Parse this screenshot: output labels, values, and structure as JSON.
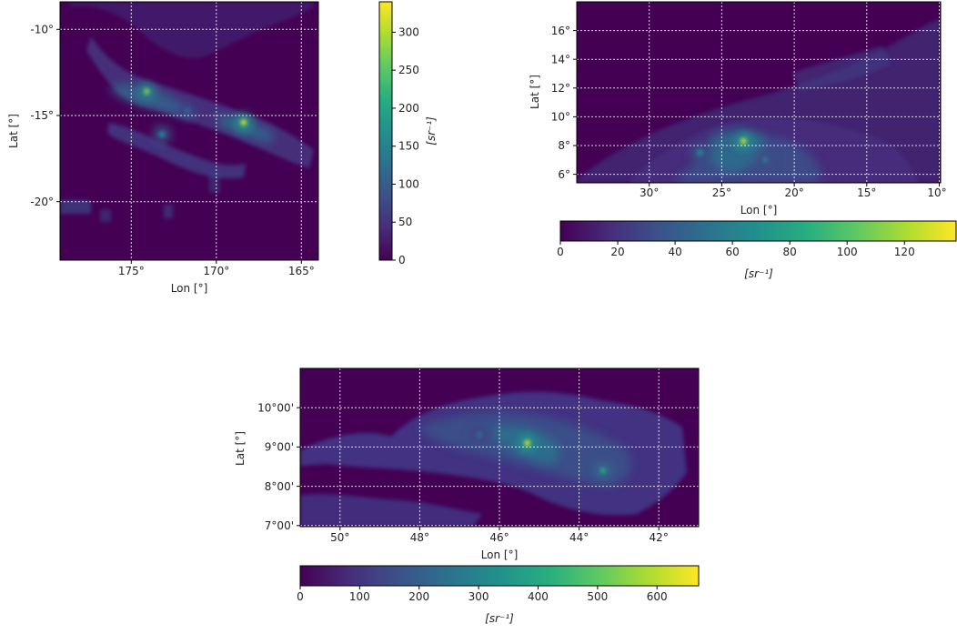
{
  "chart_data": [
    {
      "type": "heatmap",
      "xlabel": "Lon [°]",
      "ylabel": "Lat [°]",
      "x_ticks": [
        "175°",
        "170°",
        "165°"
      ],
      "x_tick_values": [
        175,
        170,
        165
      ],
      "y_ticks": [
        "-10°",
        "-15°",
        "-20°"
      ],
      "y_tick_values": [
        -10,
        -15,
        -20
      ],
      "xlim": [
        179.5,
        164.3
      ],
      "ylim": [
        -23.5,
        -8.5
      ],
      "grid": true,
      "colorbar": {
        "orientation": "vertical",
        "position": "right",
        "label": "[sr⁻¹]",
        "ticks": [
          "0",
          "50",
          "100",
          "150",
          "200",
          "250",
          "300"
        ],
        "tick_values": [
          0,
          50,
          100,
          150,
          200,
          250,
          300
        ],
        "range": [
          0,
          340
        ]
      },
      "colormap": "viridis",
      "hotspots": [
        {
          "lon": 174.4,
          "lat": -13.7,
          "value": 280
        },
        {
          "lon": 173.5,
          "lat": -16.2,
          "value": 170
        },
        {
          "lon": 168.7,
          "lat": -15.5,
          "value": 330
        },
        {
          "lon": 172.0,
          "lat": -14.8,
          "value": 120
        }
      ]
    },
    {
      "type": "heatmap",
      "xlabel": "Lon [°]",
      "ylabel": "Lat [°]",
      "x_ticks": [
        "30°",
        "25°",
        "20°",
        "15°",
        "10°"
      ],
      "x_tick_values": [
        30,
        25,
        20,
        15,
        10
      ],
      "y_ticks": [
        "16°",
        "14°",
        "12°",
        "10°",
        "8°",
        "6°"
      ],
      "y_tick_values": [
        16,
        14,
        12,
        10,
        8,
        6
      ],
      "xlim": [
        35.0,
        9.9
      ],
      "ylim": [
        5.4,
        18.0
      ],
      "grid": true,
      "colorbar": {
        "orientation": "horizontal",
        "position": "bottom",
        "label": "[sr⁻¹]",
        "ticks": [
          "0",
          "20",
          "40",
          "60",
          "80",
          "100",
          "120"
        ],
        "tick_values": [
          0,
          20,
          40,
          60,
          80,
          100,
          120
        ],
        "range": [
          0,
          138
        ]
      },
      "colormap": "viridis",
      "hotspots": [
        {
          "lon": 23.5,
          "lat": 8.3,
          "value": 130
        },
        {
          "lon": 26.5,
          "lat": 7.5,
          "value": 70
        },
        {
          "lon": 22.0,
          "lat": 7.0,
          "value": 60
        }
      ]
    },
    {
      "type": "heatmap",
      "xlabel": "Lon [°]",
      "ylabel": "Lat [°]",
      "x_ticks": [
        "50°",
        "48°",
        "46°",
        "44°",
        "42°"
      ],
      "x_tick_values": [
        50,
        48,
        46,
        44,
        42
      ],
      "y_ticks": [
        "10°00'",
        "9°00'",
        "8°00'",
        "7°00'"
      ],
      "y_tick_values": [
        10,
        9,
        8,
        7
      ],
      "xlim": [
        51.0,
        41.0
      ],
      "ylim": [
        6.97,
        11.0
      ],
      "grid": true,
      "colorbar": {
        "orientation": "horizontal",
        "position": "bottom",
        "label": "[sr⁻¹]",
        "ticks": [
          "0",
          "100",
          "200",
          "300",
          "400",
          "500",
          "600"
        ],
        "tick_values": [
          0,
          100,
          200,
          300,
          400,
          500,
          600
        ],
        "range": [
          0,
          670
        ]
      },
      "colormap": "viridis",
      "hotspots": [
        {
          "lon": 45.3,
          "lat": 9.1,
          "value": 650
        },
        {
          "lon": 43.4,
          "lat": 8.4,
          "value": 420
        },
        {
          "lon": 46.5,
          "lat": 9.3,
          "value": 250
        }
      ]
    }
  ]
}
